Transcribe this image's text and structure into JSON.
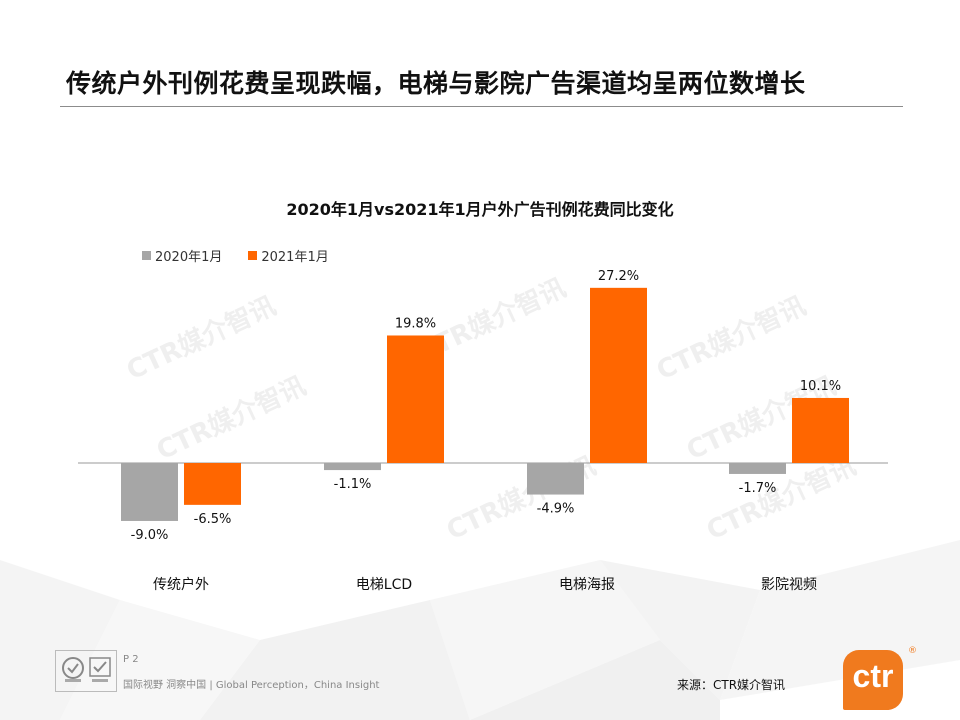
{
  "slide": {
    "title": "传统户外刊例花费呈现跌幅，电梯与影院广告渠道均呈两位数增长",
    "page": "P 2",
    "tagline": "国际视野 洞察中国 | Global Perception，China Insight",
    "source": "来源：CTR媒介智讯",
    "watermark": "CTR媒介智讯",
    "logo_text": "ctr",
    "logo_mark": "®"
  },
  "colors": {
    "series_2020": "#a6a6a6",
    "series_2021": "#ff6600",
    "brand": "#f07a1e"
  },
  "icons": [
    "certification-icon",
    "sgs-badge-icon",
    "ctr-logo"
  ],
  "chart_data": {
    "type": "bar",
    "title": "2020年1月vs2021年1月户外广告刊例花费同比变化",
    "categories": [
      "传统户外",
      "电梯LCD",
      "电梯海报",
      "影院视频"
    ],
    "series": [
      {
        "name": "2020年1月",
        "values": [
          -9.0,
          -1.1,
          -4.9,
          -1.7
        ],
        "labels": [
          "-9.0%",
          "-1.1%",
          "-4.9%",
          "-1.7%"
        ]
      },
      {
        "name": "2021年1月",
        "values": [
          -6.5,
          19.8,
          27.2,
          10.1
        ],
        "labels": [
          "-6.5%",
          "19.8%",
          "27.2%",
          "10.1%"
        ]
      }
    ],
    "legend_position": "top-left",
    "grid": false,
    "ylim": [
      -12,
      30
    ]
  }
}
